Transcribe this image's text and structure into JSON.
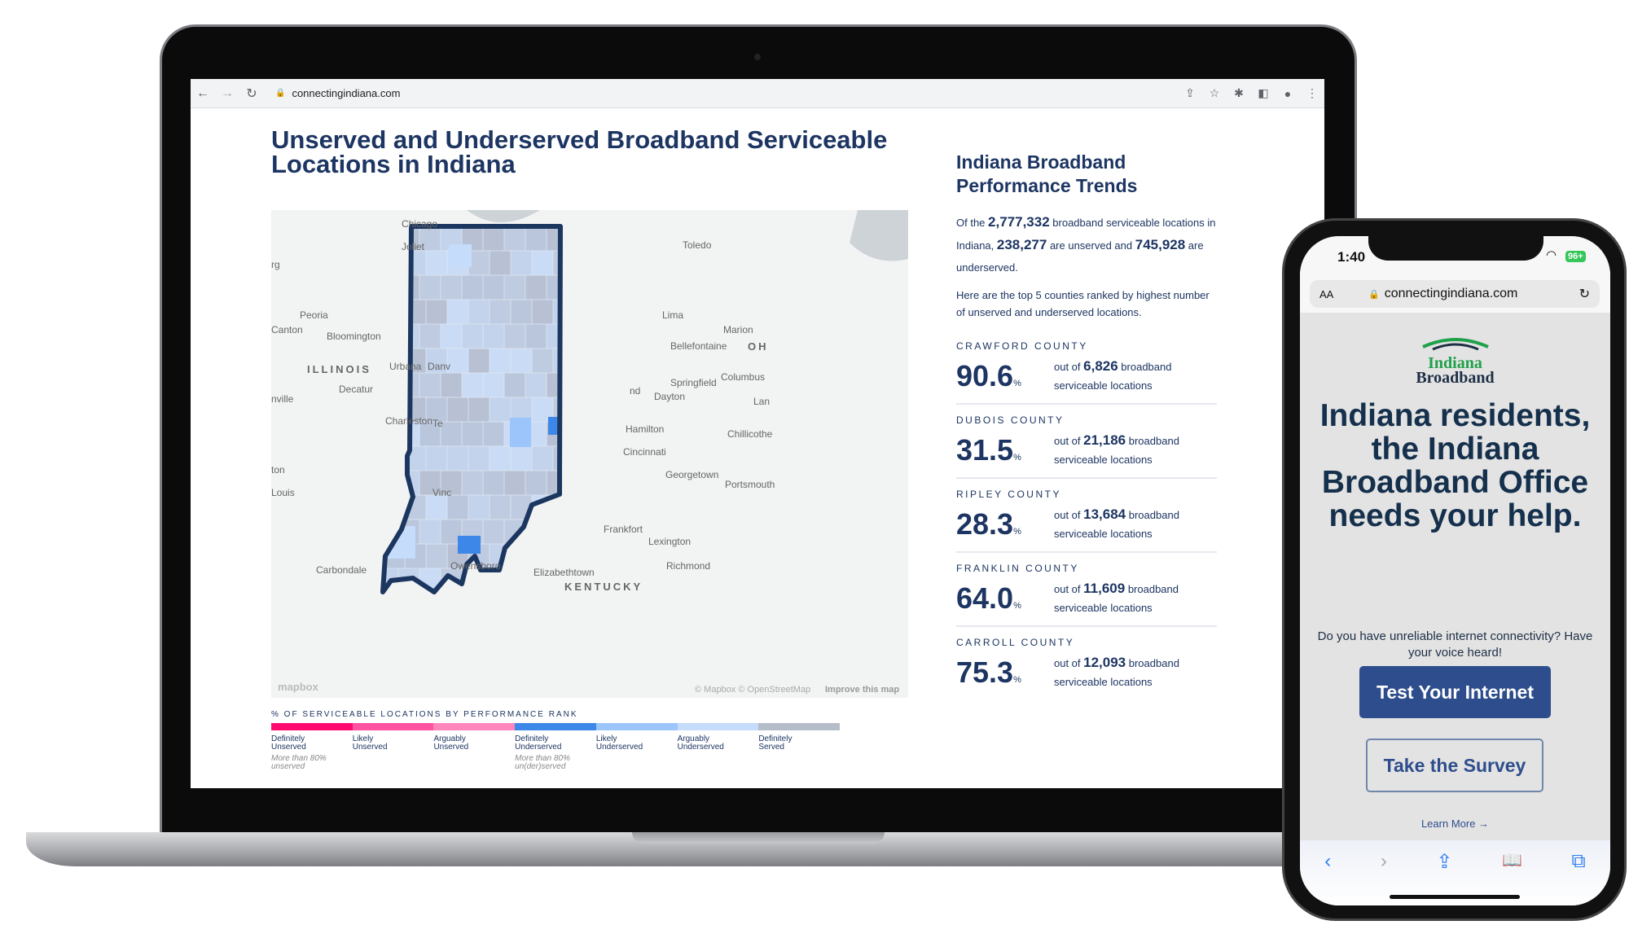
{
  "browser": {
    "url": "connectingindiana.com",
    "back": "←",
    "forward": "→",
    "reload": "↻"
  },
  "page": {
    "title": "Unserved and Underserved Broadband Serviceable Locations in Indiana"
  },
  "map": {
    "cities": [
      "Chicago",
      "Joliet",
      "Toledo",
      "Peoria",
      "Canton",
      "Bloomington",
      "ILLINOIS",
      "Urbana",
      "Danv",
      "Decatur",
      "Charleston",
      "Te",
      "Lima",
      "Marion",
      "Bellefontaine",
      "OH",
      "Springfield",
      "Columbus",
      "Dayton",
      "Hamilton",
      "Chillicothe",
      "Cincinnati",
      "Georgetown",
      "Portsmouth",
      "Frankfort",
      "Lexington",
      "Richmond",
      "Elizabethtown",
      "Carbondale",
      "Louis",
      "Vinc",
      "Owensboro",
      "KENTUCKY",
      "nd",
      "Lan",
      "rg",
      "nville",
      "ton"
    ],
    "attribution": "© Mapbox © OpenStreetMap",
    "improve_link": "Improve this map",
    "logo": "mapbox",
    "county_colors": [
      "#bfcbe0",
      "#c3d3ec",
      "#b7c1d3",
      "#c9dbf5",
      "#b9c6dc"
    ],
    "highlight_colors": {
      "definitely_underserved": "#3d87e8",
      "likely_underserved": "#9cc5fb",
      "arguably_underserved": "#c6dcfb"
    },
    "outline_color": "#1b365f"
  },
  "legend": {
    "title": "% OF SERVICEABLE LOCATIONS BY PERFORMANCE RANK",
    "items": [
      {
        "l1": "Definitely",
        "l2": "Unserved",
        "note1": "More than 80%",
        "note2": "unserved",
        "color": "#ff0a6f"
      },
      {
        "l1": "Likely",
        "l2": "Unserved",
        "note1": "",
        "note2": "",
        "color": "#ff52a0"
      },
      {
        "l1": "Arguably",
        "l2": "Unserved",
        "note1": "",
        "note2": "",
        "color": "#ff86bd"
      },
      {
        "l1": "Definitely",
        "l2": "Underserved",
        "note1": "More than 80%",
        "note2": "un(der)served",
        "color": "#3d87e8"
      },
      {
        "l1": "Likely",
        "l2": "Underserved",
        "note1": "",
        "note2": "",
        "color": "#9cc5fb"
      },
      {
        "l1": "Arguably",
        "l2": "Underserved",
        "note1": "",
        "note2": "",
        "color": "#c6dcfb"
      },
      {
        "l1": "Definitely",
        "l2": "Served",
        "note1": "",
        "note2": "",
        "color": "#b5bdca"
      }
    ]
  },
  "side": {
    "title": "Indiana Broadband Performance Trends",
    "intro": {
      "a": "Of the ",
      "total": "2,777,332",
      "b": " broadband serviceable locations in Indiana, ",
      "unserved": "238,277",
      "c": " are unserved and ",
      "underserved": "745,928",
      "d": " are underserved."
    },
    "top5": "Here are the top 5 counties ranked by highest number of unserved and underserved locations.",
    "pct_sign": "%",
    "out_of": "out of ",
    "broadband": " broadband",
    "serviceable": "serviceable locations",
    "counties": [
      {
        "name": "CRAWFORD COUNTY",
        "pct": "90.6",
        "total": "6,826"
      },
      {
        "name": "DUBOIS COUNTY",
        "pct": "31.5",
        "total": "21,186"
      },
      {
        "name": "RIPLEY COUNTY",
        "pct": "28.3",
        "total": "13,684"
      },
      {
        "name": "FRANKLIN COUNTY",
        "pct": "64.0",
        "total": "11,609"
      },
      {
        "name": "CARROLL COUNTY",
        "pct": "75.3",
        "total": "12,093"
      }
    ]
  },
  "phone": {
    "time": "1:40",
    "battery": "96+",
    "aa": "AA",
    "url": "connectingindiana.com",
    "logo_l1": "Indiana",
    "logo_l2": "Broadband",
    "heading": "Indiana residents, the Indiana Broadband Office needs your help.",
    "subtitle": "Do you have unreliable internet connectivity? Have your voice heard!",
    "test_button": "Test Your Internet",
    "survey_button": "Take the Survey",
    "learn_more": "Learn More →",
    "toolbar": {
      "back": "‹",
      "forward": "›",
      "share": "⇪",
      "bookmarks": "📖",
      "tabs": "⧉"
    }
  }
}
